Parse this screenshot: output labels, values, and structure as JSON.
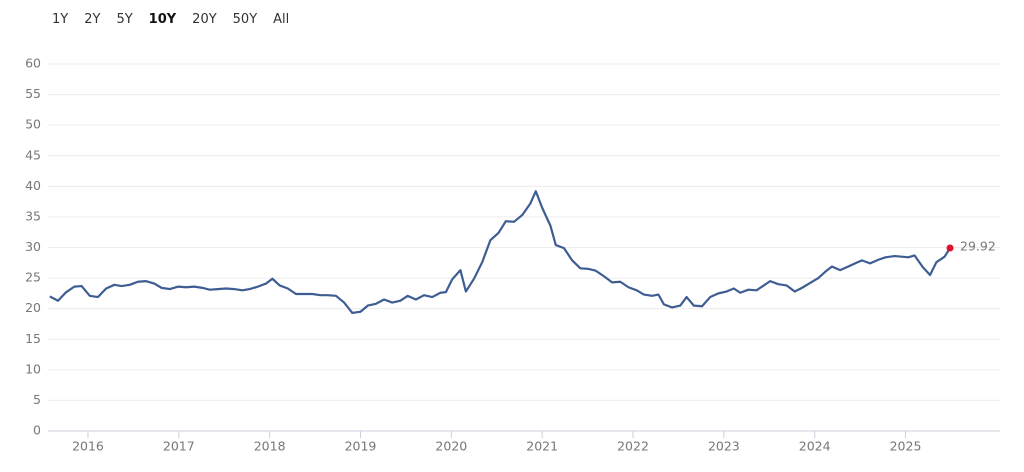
{
  "range_buttons": [
    "1Y",
    "2Y",
    "5Y",
    "10Y",
    "20Y",
    "50Y",
    "All"
  ],
  "selected_range": "10Y",
  "chart_data": {
    "type": "line",
    "x": [
      2015.58,
      2015.67,
      2015.76,
      2015.85,
      2015.93,
      2016.02,
      2016.11,
      2016.2,
      2016.29,
      2016.37,
      2016.46,
      2016.55,
      2016.64,
      2016.73,
      2016.81,
      2016.9,
      2016.99,
      2017.08,
      2017.17,
      2017.26,
      2017.34,
      2017.43,
      2017.52,
      2017.61,
      2017.7,
      2017.78,
      2017.87,
      2017.96,
      2018.03,
      2018.11,
      2018.2,
      2018.29,
      2018.38,
      2018.47,
      2018.56,
      2018.64,
      2018.73,
      2018.82,
      2018.91,
      2019.0,
      2019.08,
      2019.17,
      2019.26,
      2019.35,
      2019.44,
      2019.52,
      2019.61,
      2019.7,
      2019.79,
      2019.88,
      2019.94,
      2020.01,
      2020.1,
      2020.16,
      2020.25,
      2020.34,
      2020.43,
      2020.52,
      2020.6,
      2020.69,
      2020.78,
      2020.87,
      2020.93,
      2021.0,
      2021.09,
      2021.15,
      2021.24,
      2021.33,
      2021.42,
      2021.51,
      2021.59,
      2021.68,
      2021.77,
      2021.86,
      2021.95,
      2022.04,
      2022.12,
      2022.21,
      2022.28,
      2022.34,
      2022.43,
      2022.52,
      2022.59,
      2022.67,
      2022.76,
      2022.85,
      2022.94,
      2023.03,
      2023.11,
      2023.18,
      2023.27,
      2023.36,
      2023.44,
      2023.51,
      2023.6,
      2023.69,
      2023.78,
      2023.86,
      2023.95,
      2024.04,
      2024.13,
      2024.19,
      2024.28,
      2024.37,
      2024.46,
      2024.52,
      2024.61,
      2024.7,
      2024.78,
      2024.88,
      2024.96,
      2025.03,
      2025.1,
      2025.19,
      2025.27,
      2025.34,
      2025.43,
      2025.49
    ],
    "series": [
      {
        "color": "#3e5d92",
        "values": [
          22.0,
          21.3,
          22.7,
          23.6,
          23.7,
          22.1,
          21.9,
          23.3,
          23.9,
          23.7,
          23.9,
          24.4,
          24.5,
          24.1,
          23.4,
          23.2,
          23.6,
          23.5,
          23.6,
          23.4,
          23.1,
          23.2,
          23.3,
          23.2,
          23.0,
          23.2,
          23.6,
          24.1,
          24.9,
          23.8,
          23.3,
          22.4,
          22.4,
          22.4,
          22.2,
          22.2,
          22.1,
          21.0,
          19.3,
          19.5,
          20.5,
          20.8,
          21.5,
          21.0,
          21.3,
          22.1,
          21.5,
          22.2,
          21.9,
          22.6,
          22.7,
          24.8,
          26.3,
          22.8,
          24.9,
          27.6,
          31.2,
          32.4,
          34.3,
          34.2,
          35.3,
          37.2,
          39.2,
          36.5,
          33.6,
          30.4,
          29.9,
          27.9,
          26.6,
          26.5,
          26.2,
          25.3,
          24.3,
          24.4,
          23.5,
          23.0,
          22.3,
          22.1,
          22.3,
          20.7,
          20.2,
          20.5,
          21.9,
          20.5,
          20.4,
          21.9,
          22.5,
          22.8,
          23.3,
          22.6,
          23.1,
          23.0,
          23.8,
          24.5,
          24.0,
          23.8,
          22.8,
          23.4,
          24.2,
          25.0,
          26.2,
          26.9,
          26.3,
          26.9,
          27.5,
          27.9,
          27.4,
          28.0,
          28.4,
          28.6,
          28.5,
          28.4,
          28.7,
          26.8,
          25.5,
          27.6,
          28.5,
          29.92
        ]
      }
    ],
    "last_point_color": "#e0102a",
    "xlim": [
      2015.56,
      2026.04
    ],
    "xticks": [
      2016,
      2017,
      2018,
      2019,
      2020,
      2021,
      2022,
      2023,
      2024,
      2025
    ],
    "ylim": [
      0,
      60
    ],
    "yticks": [
      0,
      5,
      10,
      15,
      20,
      25,
      30,
      35,
      40,
      45,
      50,
      55,
      60
    ],
    "grid": true
  }
}
